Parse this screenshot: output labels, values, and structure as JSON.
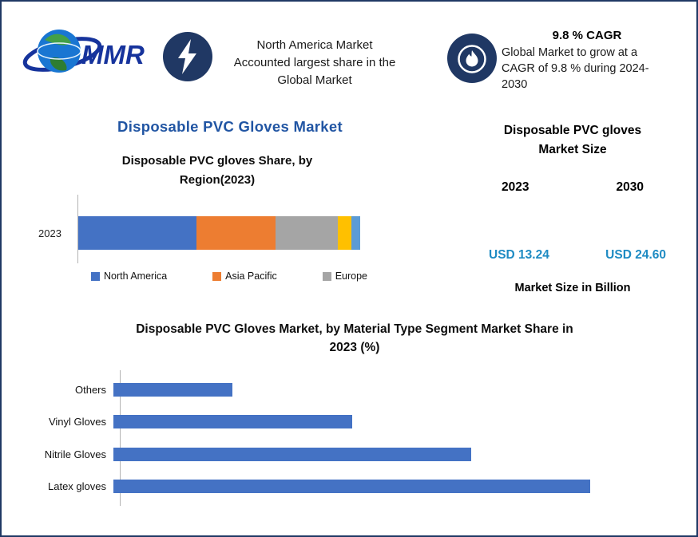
{
  "colors": {
    "border_navy": "#1f3864",
    "circle_navy": "#203864",
    "title_blue": "#2155a3",
    "value_blue": "#1e8bc3",
    "bar_blue": "#4472c4"
  },
  "header": {
    "logo": {
      "text": "MMR",
      "icon": "globe-logo"
    },
    "badge1": {
      "icon": "lightning-icon",
      "lines": [
        "North America Market",
        "Accounted largest share in the",
        "Global Market"
      ]
    },
    "badge2": {
      "icon": "flame-icon",
      "title": "9.8 % CAGR",
      "text": "Global Market to grow at a CAGR of 9.8 % during 2024-2030",
      "text_lines": [
        "Global Market to grow at a",
        "CAGR of 9.8 % during 2024-",
        "2030"
      ]
    }
  },
  "left": {
    "main_title": "Disposable PVC Gloves Market"
  },
  "market_size": {
    "title": "Disposable PVC gloves Market Size",
    "title_lines": [
      "Disposable PVC gloves",
      "Market Size"
    ],
    "year_left": "2023",
    "year_right": "2030",
    "value_left": "USD 13.24",
    "value_right": "USD 24.60",
    "footnote": "Market Size in Billion"
  },
  "chart_data": [
    {
      "type": "bar",
      "orientation": "horizontal-stacked",
      "title": "Disposable PVC gloves Share, by Region(2023)",
      "title_lines": [
        "Disposable PVC gloves Share, by",
        "Region(2023)"
      ],
      "categories": [
        "2023"
      ],
      "series": [
        {
          "name": "North America",
          "color": "#4472c4",
          "values": [
            42
          ]
        },
        {
          "name": "Asia Pacific",
          "color": "#ed7d31",
          "values": [
            28
          ]
        },
        {
          "name": "Europe",
          "color": "#a5a5a5",
          "values": [
            22
          ]
        },
        {
          "name": "unlabeled-yellow",
          "color": "#ffc000",
          "values": [
            5
          ]
        },
        {
          "name": "unlabeled-lightblue",
          "color": "#5b9bd5",
          "values": [
            3
          ]
        }
      ],
      "legend": [
        "North America",
        "Asia Pacific",
        "Europe"
      ],
      "legend_position": "bottom",
      "xlim": [
        0,
        100
      ],
      "grid": false
    },
    {
      "type": "bar",
      "orientation": "horizontal",
      "title": "Disposable PVC Gloves Market, by Material Type Segment Market Share in 2023 (%)",
      "title_lines": [
        "Disposable PVC Gloves Market, by Material Type Segment Market Share in",
        "2023 (%)"
      ],
      "categories": [
        "Others",
        "Vinyl Gloves",
        "Nitrile Gloves",
        "Latex gloves"
      ],
      "values": [
        10,
        20,
        30,
        40
      ],
      "bar_color": "#4472c4",
      "xlim": [
        0,
        45
      ],
      "grid": false,
      "legend_position": "none"
    }
  ]
}
